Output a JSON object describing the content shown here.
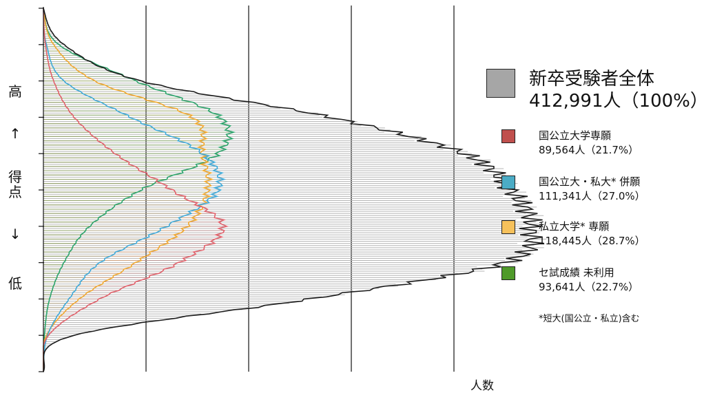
{
  "chart_data": {
    "type": "area",
    "orientation": "horizontal",
    "xlabel": "人数",
    "y_axis_labels": [
      "高",
      "↑",
      "得点",
      "↓",
      "低"
    ],
    "xlim": [
      0,
      6
    ],
    "y_levels": [
      0,
      1,
      2,
      3,
      4,
      5,
      6,
      7,
      8,
      9,
      10
    ],
    "series": [
      {
        "name": "新卒受験者全体",
        "count": "412,991人",
        "share": "（100%）",
        "color": "#a6a6a6",
        "values": [
          0.0,
          0.2,
          0.95,
          2.8,
          4.1,
          4.55,
          4.75,
          4.5,
          2.6,
          0.3,
          0.0
        ]
      },
      {
        "name": "国公立大学専願",
        "count": "89,564人",
        "share": "（21.7%）",
        "color": "#c0504d",
        "values": [
          0.0,
          0.02,
          0.1,
          0.3,
          0.7,
          1.25,
          1.75,
          1.32,
          0.55,
          0.05,
          0.0
        ]
      },
      {
        "name": "国公立大・私大* 併願",
        "count": "111,341人",
        "share": "（27.0%）",
        "color": "#4bacc6",
        "values": [
          0.0,
          0.03,
          0.2,
          0.85,
          1.55,
          1.7,
          1.2,
          0.55,
          0.25,
          0.04,
          0.0
        ]
      },
      {
        "name": "私立大学* 専願",
        "count": "118,445人",
        "share": "（28.7%）",
        "color": "#f6c15b",
        "values": [
          0.0,
          0.1,
          0.5,
          1.45,
          1.55,
          1.6,
          1.4,
          0.9,
          0.35,
          0.03,
          0.0
        ]
      },
      {
        "name": "セ試成績 未利用",
        "count": "93,641人",
        "share": "（22.7%）",
        "color": "#4f9a2a",
        "values": [
          0.0,
          0.15,
          0.9,
          1.72,
          1.7,
          0.95,
          0.45,
          0.2,
          0.06,
          0.01,
          0.0
        ]
      }
    ],
    "footnote": "*短大(国公立・私立)含む",
    "grid": true
  },
  "colors": {
    "total_line": "#1a1a1a",
    "national": "#e0606a",
    "national_fill": "#c0504d",
    "both": "#3fa9d8",
    "both_fill": "#4bacc6",
    "private": "#f0a830",
    "private_fill": "#f6c15b",
    "unused": "#2aa36a",
    "unused_fill": "#4f9a2a",
    "grid": "#111111",
    "hatch": "#b5b5b5"
  }
}
